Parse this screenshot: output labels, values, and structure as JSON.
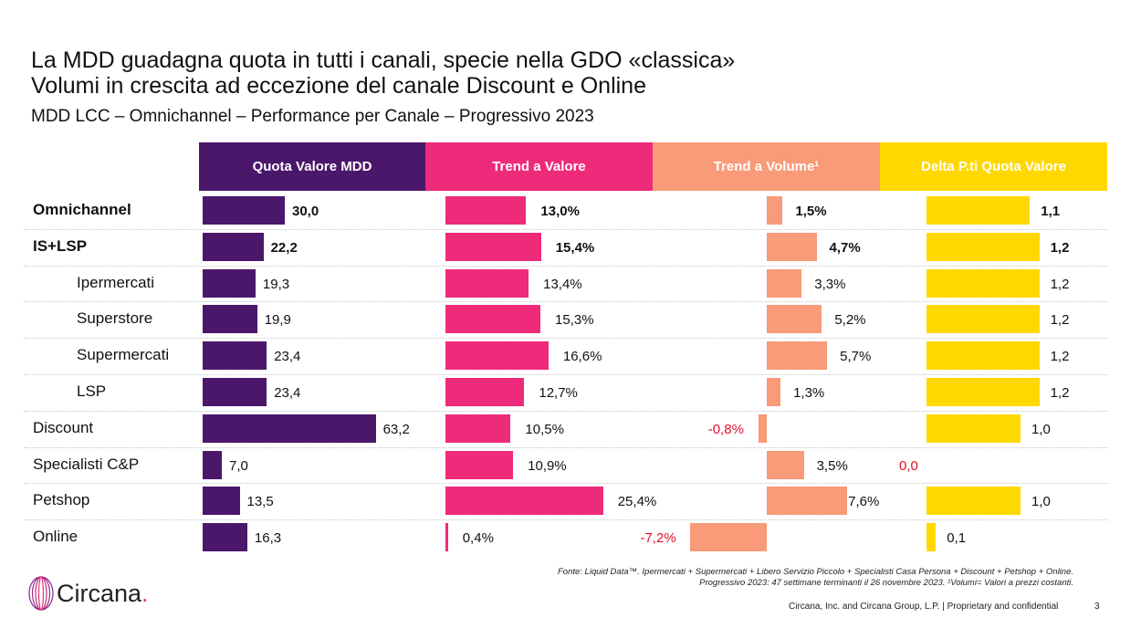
{
  "header": {
    "title_line1": "La MDD guadagna quota in tutti i canali, specie nella GDO «classica»",
    "title_line2": "Volumi in crescita ad eccezione del canale Discount e Online",
    "subtitle": "MDD LCC – Omnichannel – Performance per Canale – Progressivo 2023"
  },
  "chart_data": {
    "type": "bar",
    "orientation": "horizontal",
    "categories": [
      "Omnichannel",
      "IS+LSP",
      "Ipermercati",
      "Superstore",
      "Supermercati",
      "LSP",
      "Discount",
      "Specialisti C&P",
      "Petshop",
      "Online"
    ],
    "series": [
      {
        "name": "Quota Valore MDD",
        "color": "#4b176b",
        "values": [
          30.0,
          22.2,
          19.3,
          19.9,
          23.4,
          23.4,
          63.2,
          7.0,
          13.5,
          16.3
        ],
        "labels": [
          "30,0",
          "22,2",
          "19,3",
          "19,9",
          "23,4",
          "23,4",
          "63,2",
          "7,0",
          "13,5",
          "16,3"
        ]
      },
      {
        "name": "Trend a Valore",
        "color": "#ee2a7b",
        "values": [
          13.0,
          15.4,
          13.4,
          15.3,
          16.6,
          12.7,
          10.5,
          10.9,
          25.4,
          0.4
        ],
        "labels": [
          "13,0%",
          "15,4%",
          "13,4%",
          "15,3%",
          "16,6%",
          "12,7%",
          "10,5%",
          "10,9%",
          "25,4%",
          "0,4%"
        ]
      },
      {
        "name": "Trend a Volume¹",
        "color": "#f99a78",
        "values": [
          1.5,
          4.7,
          3.3,
          5.2,
          5.7,
          1.3,
          -0.8,
          3.5,
          7.6,
          -7.2
        ],
        "labels": [
          "1,5%",
          "4,7%",
          "3,3%",
          "5,2%",
          "5,7%",
          "1,3%",
          "-0,8%",
          "3,5%",
          "7,6%",
          "-7,2%"
        ]
      },
      {
        "name": "Delta P.ti Quota Valore",
        "color": "#ffd800",
        "values": [
          1.1,
          1.2,
          1.2,
          1.2,
          1.2,
          1.2,
          1.0,
          0.0,
          1.0,
          0.1
        ],
        "labels": [
          "1,1",
          "1,2",
          "1,2",
          "1,2",
          "1,2",
          "1,2",
          "1,0",
          "0,0",
          "1,0",
          "0,1"
        ]
      }
    ],
    "bold_rows": [
      "Omnichannel",
      "IS+LSP"
    ],
    "indented_rows": [
      "Ipermercati",
      "Superstore",
      "Supermercati",
      "LSP"
    ]
  },
  "footnote": {
    "line1": "Fonte: Liquid Data™. Ipermercati + Supermercati + Libero Servizio Piccolo + Specialisti Casa Persona + Discount + Petshop + Online.",
    "line2": "Progressivo 2023: 47 settimane terminanti il 26 novembre 2023. ¹Volumi= Valori a prezzi costanti."
  },
  "footer": {
    "logo_text": "Circana",
    "logo_dot": ".",
    "copyright": "Circana, Inc. and Circana Group, L.P. |  Proprietary and confidential",
    "page_number": "3"
  }
}
